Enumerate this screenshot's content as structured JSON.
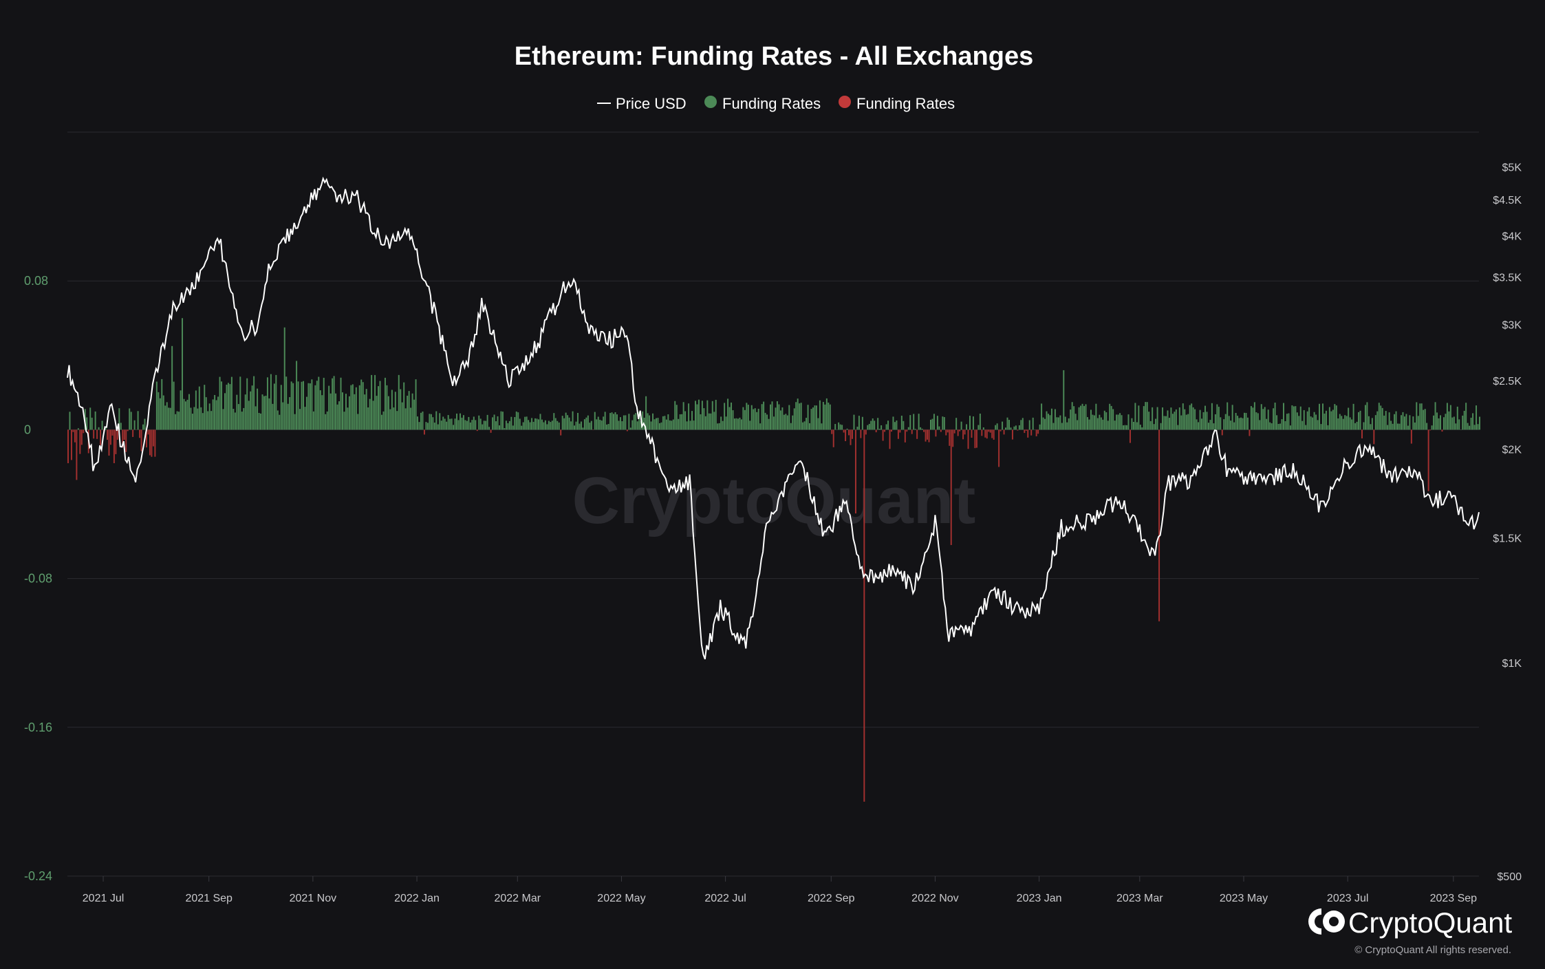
{
  "chart_data": {
    "type": "bar",
    "title": "Ethereum: Funding Rates - All Exchanges",
    "legend": [
      {
        "label": "Price USD",
        "marker": "line",
        "color": "#ffffff"
      },
      {
        "label": "Funding Rates",
        "marker": "dot",
        "color": "#4c8a57"
      },
      {
        "label": "Funding Rates",
        "marker": "dot",
        "color": "#c23a3a"
      }
    ],
    "legend_position": "top-center",
    "colors": {
      "positive": "#4c8a57",
      "negative": "#a3302f",
      "price": "#ffffff",
      "grid": "#2b2b30"
    },
    "x_range": [
      "2021-06-10",
      "2023-09-16"
    ],
    "x_ticks": [
      {
        "date": "2021-07-01",
        "label": "2021 Jul"
      },
      {
        "date": "2021-09-01",
        "label": "2021 Sep"
      },
      {
        "date": "2021-11-01",
        "label": "2021 Nov"
      },
      {
        "date": "2022-01-01",
        "label": "2022 Jan"
      },
      {
        "date": "2022-03-01",
        "label": "2022 Mar"
      },
      {
        "date": "2022-05-01",
        "label": "2022 May"
      },
      {
        "date": "2022-07-01",
        "label": "2022 Jul"
      },
      {
        "date": "2022-09-01",
        "label": "2022 Sep"
      },
      {
        "date": "2022-11-01",
        "label": "2022 Nov"
      },
      {
        "date": "2023-01-01",
        "label": "2023 Jan"
      },
      {
        "date": "2023-03-01",
        "label": "2023 Mar"
      },
      {
        "date": "2023-05-01",
        "label": "2023 May"
      },
      {
        "date": "2023-07-01",
        "label": "2023 Jul"
      },
      {
        "date": "2023-09-01",
        "label": "2023 Sep"
      }
    ],
    "y_left": {
      "label": "",
      "range": [
        -0.24,
        0.16
      ],
      "ticks": [
        0.08,
        0,
        -0.08,
        -0.16,
        -0.24
      ],
      "tick_labels": [
        "0.08",
        "0",
        "-0.08",
        "-0.16",
        "-0.24"
      ]
    },
    "y_right": {
      "label": "",
      "scale": "log",
      "range": [
        500,
        5600
      ],
      "ticks": [
        5000,
        4500,
        4000,
        3500,
        3000,
        2500,
        2000,
        1500,
        1000,
        500
      ],
      "tick_labels": [
        "$5K",
        "$4.5K",
        "$4K",
        "$3.5K",
        "$3K",
        "$2.5K",
        "$2K",
        "$1.5K",
        "$1K",
        "$500"
      ]
    },
    "grid": true,
    "series": [
      {
        "name": "Price USD",
        "type": "line",
        "axis": "right",
        "points": [
          [
            "2021-06-10",
            2600
          ],
          [
            "2021-06-20",
            2250
          ],
          [
            "2021-06-26",
            1850
          ],
          [
            "2021-07-05",
            2300
          ],
          [
            "2021-07-20",
            1780
          ],
          [
            "2021-07-31",
            2500
          ],
          [
            "2021-08-12",
            3200
          ],
          [
            "2021-08-21",
            3300
          ],
          [
            "2021-09-03",
            3900
          ],
          [
            "2021-09-07",
            3950
          ],
          [
            "2021-09-21",
            2900
          ],
          [
            "2021-09-30",
            3000
          ],
          [
            "2021-10-06",
            3550
          ],
          [
            "2021-10-20",
            4100
          ],
          [
            "2021-11-09",
            4800
          ],
          [
            "2021-11-16",
            4500
          ],
          [
            "2021-11-25",
            4600
          ],
          [
            "2021-12-04",
            4200
          ],
          [
            "2021-12-15",
            3900
          ],
          [
            "2021-12-27",
            4100
          ],
          [
            "2022-01-07",
            3400
          ],
          [
            "2022-01-22",
            2500
          ],
          [
            "2022-01-31",
            2650
          ],
          [
            "2022-02-08",
            3200
          ],
          [
            "2022-02-24",
            2500
          ],
          [
            "2022-03-09",
            2700
          ],
          [
            "2022-03-29",
            3400
          ],
          [
            "2022-04-03",
            3500
          ],
          [
            "2022-04-11",
            3000
          ],
          [
            "2022-04-25",
            2850
          ],
          [
            "2022-05-04",
            2950
          ],
          [
            "2022-05-10",
            2300
          ],
          [
            "2022-05-20",
            2000
          ],
          [
            "2022-05-28",
            1750
          ],
          [
            "2022-06-10",
            1800
          ],
          [
            "2022-06-18",
            1000
          ],
          [
            "2022-06-28",
            1200
          ],
          [
            "2022-07-13",
            1050
          ],
          [
            "2022-07-25",
            1550
          ],
          [
            "2022-08-14",
            1950
          ],
          [
            "2022-08-29",
            1500
          ],
          [
            "2022-09-10",
            1720
          ],
          [
            "2022-09-20",
            1300
          ],
          [
            "2022-10-05",
            1350
          ],
          [
            "2022-10-20",
            1280
          ],
          [
            "2022-11-01",
            1580
          ],
          [
            "2022-11-09",
            1100
          ],
          [
            "2022-11-21",
            1100
          ],
          [
            "2022-12-05",
            1270
          ],
          [
            "2022-12-20",
            1180
          ],
          [
            "2023-01-01",
            1200
          ],
          [
            "2023-01-14",
            1550
          ],
          [
            "2023-02-01",
            1600
          ],
          [
            "2023-02-16",
            1700
          ],
          [
            "2023-02-25",
            1600
          ],
          [
            "2023-03-10",
            1400
          ],
          [
            "2023-03-18",
            1800
          ],
          [
            "2023-03-31",
            1800
          ],
          [
            "2023-04-14",
            2100
          ],
          [
            "2023-04-22",
            1850
          ],
          [
            "2023-05-10",
            1800
          ],
          [
            "2023-06-01",
            1870
          ],
          [
            "2023-06-15",
            1650
          ],
          [
            "2023-07-01",
            1930
          ],
          [
            "2023-07-14",
            2000
          ],
          [
            "2023-07-25",
            1850
          ],
          [
            "2023-08-10",
            1850
          ],
          [
            "2023-08-18",
            1680
          ],
          [
            "2023-08-30",
            1720
          ],
          [
            "2023-09-11",
            1550
          ],
          [
            "2023-09-16",
            1630
          ]
        ]
      },
      {
        "name": "Funding Rates",
        "type": "bar",
        "axis": "left",
        "note_highlights": [
          [
            "2021-06-15",
            -0.027
          ],
          [
            "2021-08-10",
            0.045
          ],
          [
            "2021-08-16",
            0.06
          ],
          [
            "2021-10-15",
            0.055
          ],
          [
            "2021-10-22",
            0.037
          ],
          [
            "2022-05-15",
            0.018
          ],
          [
            "2022-09-15",
            -0.045
          ],
          [
            "2022-09-20",
            -0.2
          ],
          [
            "2022-11-10",
            -0.062
          ],
          [
            "2022-12-08",
            -0.02
          ],
          [
            "2023-01-15",
            0.032
          ],
          [
            "2023-03-12",
            -0.103
          ],
          [
            "2023-08-17",
            -0.033
          ]
        ]
      }
    ]
  },
  "watermark": "CryptoQuant",
  "brand": {
    "name": "CryptoQuant",
    "copyright": "© CryptoQuant All rights reserved."
  }
}
